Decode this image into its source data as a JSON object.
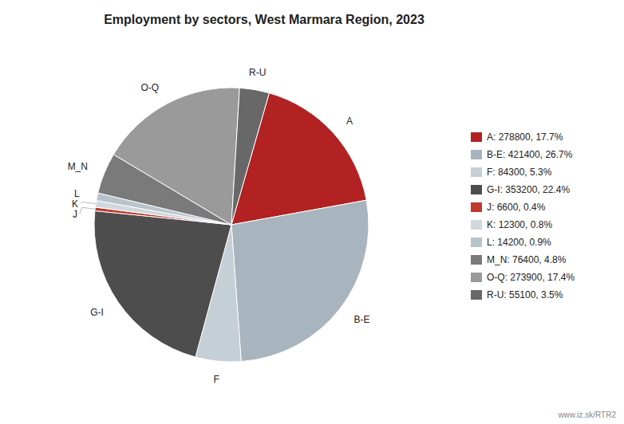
{
  "chart_data": {
    "type": "pie",
    "title": "Employment by sectors, West Marmara Region, 2023",
    "categories": [
      "A",
      "B-E",
      "F",
      "G-I",
      "J",
      "K",
      "L",
      "M_N",
      "O-Q",
      "R-U"
    ],
    "values": [
      278800,
      421400,
      84300,
      353200,
      6600,
      12300,
      14200,
      76400,
      273900,
      55100
    ],
    "colors": [
      "#b22222",
      "#a8b4be",
      "#c5cfd6",
      "#4d4d4d",
      "#c0392b",
      "#d0d8de",
      "#b8c4cc",
      "#7a7a7a",
      "#9a9a9a",
      "#686868"
    ],
    "legend_labels": [
      "A: 278800, 17.7%",
      "B-E: 421400, 26.7%",
      "F: 84300, 5.3%",
      "G-I: 353200, 22.4%",
      "J: 6600, 0.4%",
      "K: 12300, 0.8%",
      "L: 14200, 0.9%",
      "M_N: 76400, 4.8%",
      "O-Q: 273900, 17.4%",
      "R-U: 55100, 3.5%"
    ],
    "legend": "right",
    "annotations": [
      "www.iz.sk/RTR2"
    ]
  }
}
